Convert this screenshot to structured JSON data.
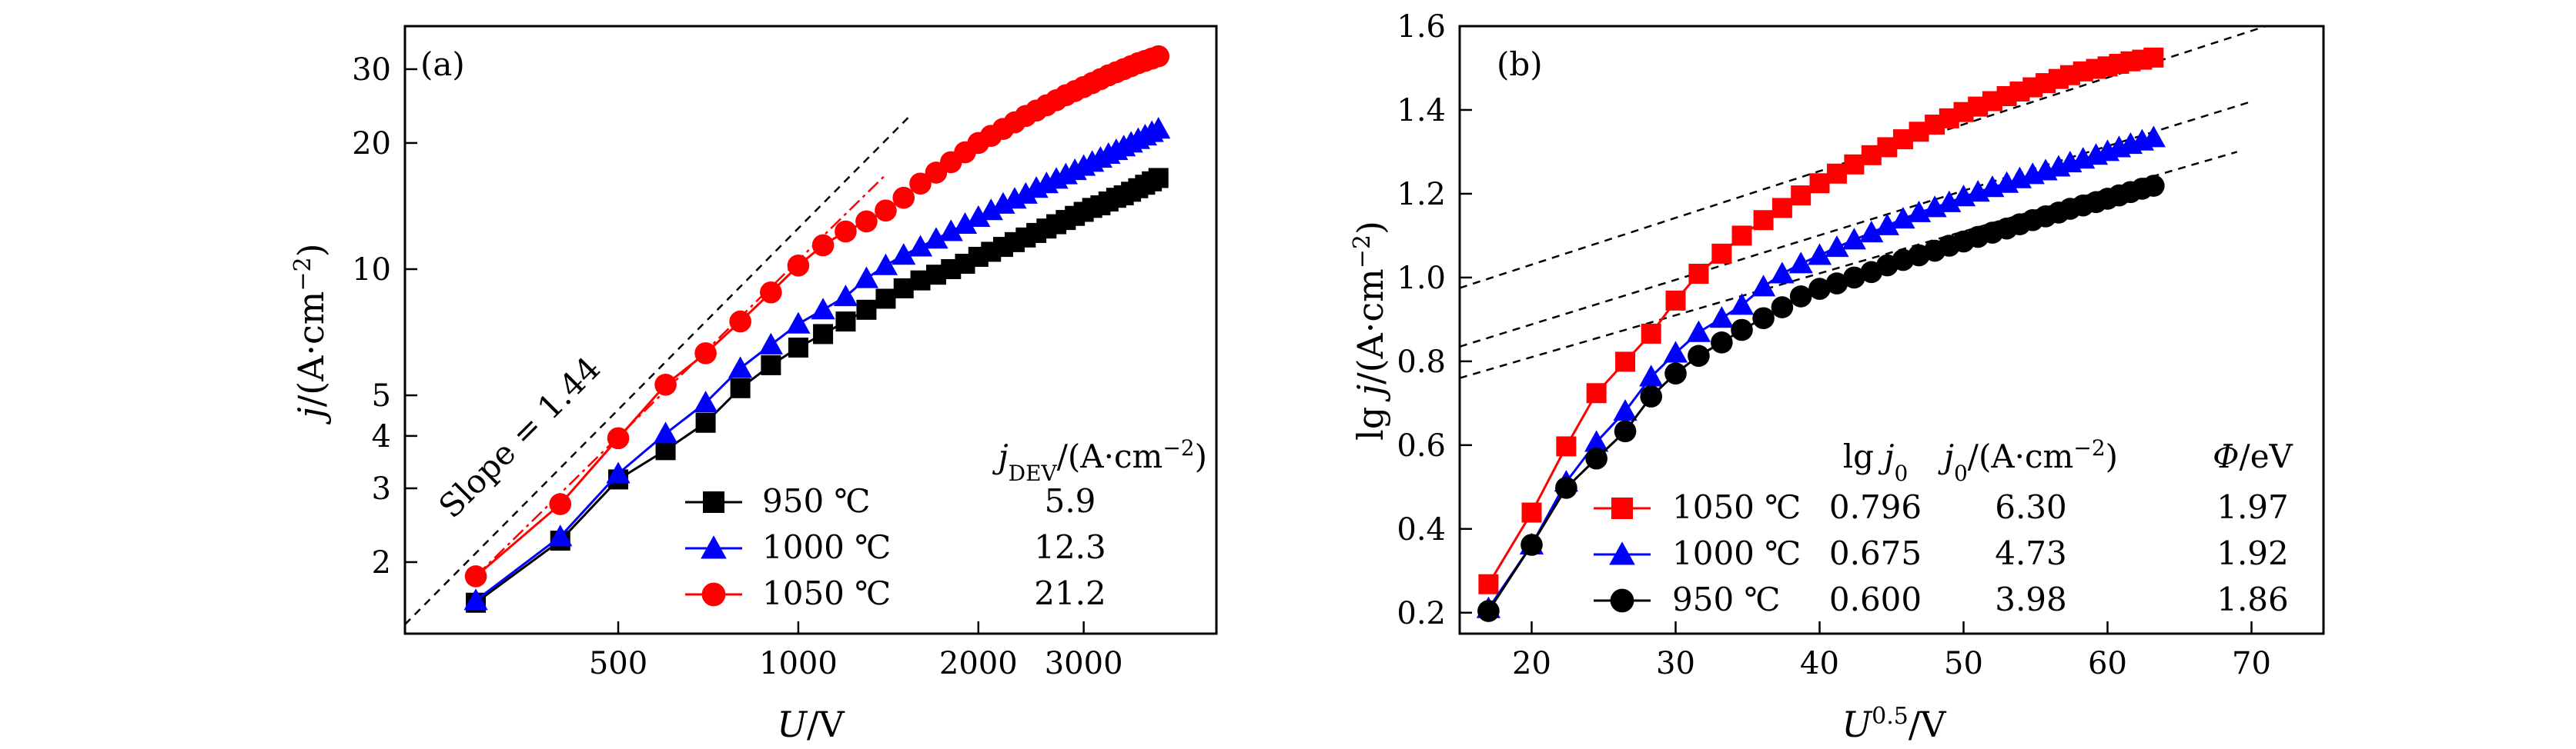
{
  "chart_data": [
    {
      "panel_label": "(a)",
      "type": "line",
      "x_scale": "log",
      "y_scale": "log",
      "xlabel": "U/V",
      "ylabel": "j/(A·cm⁻²)",
      "x_ticks": [
        "500",
        "1000",
        "2000",
        "3000"
      ],
      "y_ticks": [
        "2",
        "3",
        "4",
        "5",
        "10",
        "20",
        "30"
      ],
      "xlim": [
        220,
        5000
      ],
      "ylim": [
        1.35,
        38
      ],
      "fit_annotation": "Slope = 1.44",
      "legend_header": "jDEV/(A·cm⁻²)",
      "legend_placement": "bottom-right",
      "series": [
        {
          "name": "950 ℃",
          "value_label": "5.9",
          "color": "#000000",
          "marker": "square",
          "x": [
            289,
            400,
            500,
            600,
            700,
            800,
            900,
            1000,
            1100,
            1200,
            1300,
            1400,
            1500,
            1600,
            1700,
            1800,
            1900,
            2000,
            2100,
            2200,
            2300,
            2400,
            2500,
            2600,
            2700,
            2800,
            2900,
            3000,
            3100,
            3200,
            3300,
            3400,
            3500,
            3600,
            3700,
            3800,
            3900,
            4000
          ],
          "y": [
            1.6,
            2.25,
            3.15,
            3.7,
            4.3,
            5.2,
            5.9,
            6.5,
            7.0,
            7.5,
            8.0,
            8.5,
            9.0,
            9.4,
            9.7,
            10.0,
            10.3,
            10.7,
            11.0,
            11.3,
            11.6,
            11.9,
            12.2,
            12.5,
            12.8,
            13.1,
            13.4,
            13.7,
            14.0,
            14.2,
            14.5,
            14.8,
            15.0,
            15.3,
            15.6,
            15.9,
            16.2,
            16.5
          ]
        },
        {
          "name": "1000 ℃",
          "value_label": "12.3",
          "color": "#0000ff",
          "marker": "triangle",
          "x": [
            289,
            400,
            500,
            600,
            700,
            800,
            900,
            1000,
            1100,
            1200,
            1300,
            1400,
            1500,
            1600,
            1700,
            1800,
            1900,
            2000,
            2100,
            2200,
            2300,
            2400,
            2500,
            2600,
            2700,
            2800,
            2900,
            3000,
            3100,
            3200,
            3300,
            3400,
            3500,
            3600,
            3700,
            3800,
            3900,
            4000
          ],
          "y": [
            1.62,
            2.3,
            3.25,
            4.05,
            4.8,
            5.8,
            6.6,
            7.4,
            8.0,
            8.6,
            9.5,
            10.2,
            10.8,
            11.3,
            11.8,
            12.3,
            12.8,
            13.3,
            13.8,
            14.3,
            14.7,
            15.1,
            15.6,
            16.0,
            16.4,
            16.8,
            17.2,
            17.6,
            18.0,
            18.4,
            18.8,
            19.2,
            19.6,
            20.0,
            20.4,
            20.8,
            21.2,
            21.6
          ]
        },
        {
          "name": "1050 ℃",
          "value_label": "21.2",
          "color": "#ff0000",
          "marker": "circle",
          "x": [
            289,
            400,
            500,
            600,
            700,
            800,
            900,
            1000,
            1100,
            1200,
            1300,
            1400,
            1500,
            1600,
            1700,
            1800,
            1900,
            2000,
            2100,
            2200,
            2300,
            2400,
            2500,
            2600,
            2700,
            2800,
            2900,
            3000,
            3100,
            3200,
            3300,
            3400,
            3500,
            3600,
            3700,
            3800,
            3900,
            4000
          ],
          "y": [
            1.85,
            2.75,
            3.95,
            5.3,
            6.3,
            7.5,
            8.8,
            10.2,
            11.4,
            12.3,
            13.0,
            13.8,
            14.8,
            16.0,
            17.0,
            18.0,
            19.0,
            20.0,
            20.8,
            21.6,
            22.4,
            23.2,
            23.9,
            24.6,
            25.3,
            26.0,
            26.6,
            27.2,
            27.8,
            28.4,
            29.0,
            29.5,
            30.0,
            30.5,
            31.0,
            31.4,
            31.8,
            32.2
          ]
        }
      ],
      "fit_line": {
        "style": "dashed",
        "x": [
          220,
          1550
        ],
        "y": [
          1.42,
          23.5
        ]
      },
      "fit_line_red": {
        "style": "dash-dot",
        "x": [
          289,
          1400
        ],
        "y": [
          1.85,
          16.8
        ]
      }
    },
    {
      "panel_label": "(b)",
      "type": "line",
      "xlabel": "U^0.5/V",
      "ylabel": "lg j/(A·cm⁻²)",
      "x_ticks": [
        "20",
        "30",
        "40",
        "50",
        "60",
        "70"
      ],
      "y_ticks": [
        "0.2",
        "0.4",
        "0.6",
        "0.8",
        "1.0",
        "1.2",
        "1.4",
        "1.6"
      ],
      "xlim": [
        15,
        75
      ],
      "ylim": [
        0.15,
        1.6
      ],
      "legend_placement": "bottom-right",
      "legend_headers": [
        "lg j0",
        "j0/(A·cm⁻²)",
        "Φ/eV"
      ],
      "series": [
        {
          "name": "1050 ℃",
          "lg_j0": "0.796",
          "j0": "6.30",
          "phi": "1.97",
          "color": "#ff0000",
          "marker": "square",
          "x": [
            17.0,
            20.0,
            22.4,
            24.5,
            26.5,
            28.3,
            30.0,
            31.6,
            33.2,
            34.6,
            36.1,
            37.4,
            38.7,
            40.0,
            41.2,
            42.4,
            43.6,
            44.7,
            45.8,
            46.9,
            48.0,
            49.0,
            50.0,
            51.0,
            52.0,
            53.0,
            53.9,
            54.8,
            55.7,
            56.6,
            57.4,
            58.3,
            59.2,
            60.0,
            60.8,
            61.6,
            62.4,
            63.2
          ],
          "y": [
            0.268,
            0.439,
            0.597,
            0.724,
            0.799,
            0.866,
            0.945,
            1.009,
            1.057,
            1.1,
            1.137,
            1.166,
            1.196,
            1.225,
            1.248,
            1.27,
            1.292,
            1.311,
            1.33,
            1.348,
            1.365,
            1.38,
            1.395,
            1.408,
            1.421,
            1.433,
            1.444,
            1.454,
            1.464,
            1.474,
            1.483,
            1.492,
            1.498,
            1.504,
            1.51,
            1.516,
            1.52,
            1.525
          ]
        },
        {
          "name": "1000 ℃",
          "lg_j0": "0.675",
          "j0": "4.73",
          "phi": "1.92",
          "color": "#0000ff",
          "marker": "triangle",
          "x": [
            17.0,
            20.0,
            22.4,
            24.5,
            26.5,
            28.3,
            30.0,
            31.6,
            33.2,
            34.6,
            36.1,
            37.4,
            38.7,
            40.0,
            41.2,
            42.4,
            43.6,
            44.7,
            45.8,
            46.9,
            48.0,
            49.0,
            50.0,
            51.0,
            52.0,
            53.0,
            53.9,
            54.8,
            55.7,
            56.6,
            57.4,
            58.3,
            59.2,
            60.0,
            60.8,
            61.6,
            62.4,
            63.2
          ],
          "y": [
            0.21,
            0.362,
            0.512,
            0.607,
            0.681,
            0.763,
            0.82,
            0.869,
            0.903,
            0.934,
            0.978,
            1.009,
            1.033,
            1.053,
            1.072,
            1.09,
            1.107,
            1.124,
            1.14,
            1.155,
            1.167,
            1.179,
            1.193,
            1.204,
            1.215,
            1.225,
            1.236,
            1.246,
            1.255,
            1.264,
            1.274,
            1.283,
            1.292,
            1.301,
            1.31,
            1.318,
            1.326,
            1.334
          ]
        },
        {
          "name": "950 ℃",
          "lg_j0": "0.600",
          "j0": "3.98",
          "phi": "1.86",
          "color": "#000000",
          "marker": "circle",
          "x": [
            17.0,
            20.0,
            22.4,
            24.5,
            26.5,
            28.3,
            30.0,
            31.6,
            33.2,
            34.6,
            36.1,
            37.4,
            38.7,
            40.0,
            41.2,
            42.4,
            43.6,
            44.7,
            45.8,
            46.9,
            48.0,
            49.0,
            50.0,
            51.0,
            52.0,
            53.0,
            53.9,
            54.8,
            55.7,
            56.6,
            57.4,
            58.3,
            59.2,
            60.0,
            60.8,
            61.6,
            62.4,
            63.2
          ],
          "y": [
            0.204,
            0.362,
            0.498,
            0.568,
            0.633,
            0.716,
            0.771,
            0.813,
            0.845,
            0.875,
            0.903,
            0.929,
            0.955,
            0.973,
            0.986,
            1.0,
            1.013,
            1.029,
            1.042,
            1.053,
            1.064,
            1.076,
            1.086,
            1.097,
            1.107,
            1.117,
            1.127,
            1.137,
            1.146,
            1.155,
            1.164,
            1.172,
            1.18,
            1.188,
            1.196,
            1.204,
            1.212,
            1.219
          ]
        }
      ],
      "fit_lines": [
        {
          "style": "dashed",
          "x": [
            15,
            71
          ],
          "y": [
            0.975,
            1.6
          ]
        },
        {
          "style": "dashed",
          "x": [
            15,
            70
          ],
          "y": [
            0.835,
            1.42
          ]
        },
        {
          "style": "dashed",
          "x": [
            15,
            69
          ],
          "y": [
            0.76,
            1.3
          ]
        }
      ]
    }
  ]
}
